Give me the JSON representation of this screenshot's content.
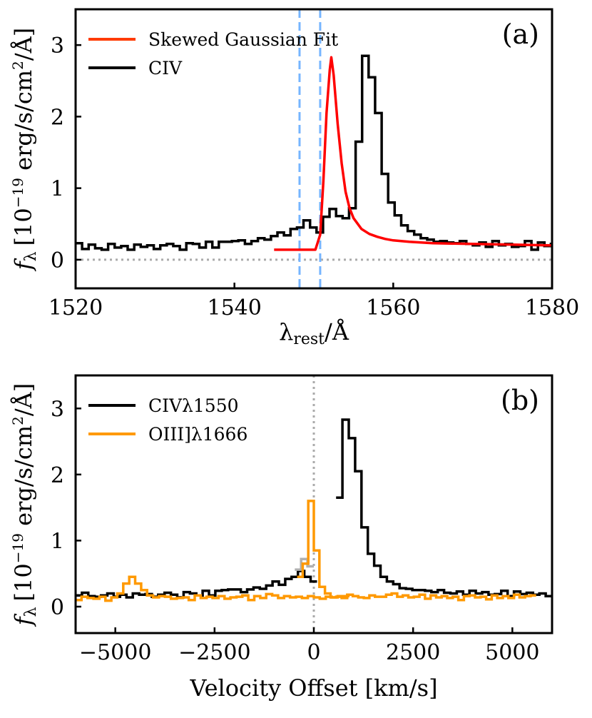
{
  "chart_data": [
    {
      "panel": "a",
      "type": "line",
      "panel_label": "(a)",
      "xlabel": {
        "main": "λ",
        "sub": "rest",
        "unit": "/Å"
      },
      "ylabel": {
        "f": "f",
        "fsub": "λ",
        "bracket_open": "[10",
        "exp": "−19",
        "unit": " erg/s/cm",
        "sq": "2",
        "tail": "/Å]"
      },
      "xlim": [
        1520,
        1580
      ],
      "ylim": [
        -0.4,
        3.5
      ],
      "xticks": [
        1520,
        1540,
        1560,
        1580
      ],
      "yticks": [
        0,
        1,
        2,
        3
      ],
      "legend": [
        {
          "label": "Skewed Gaussian Fit",
          "color": "#ff3b00"
        },
        {
          "label": "CIV",
          "color": "#000000"
        }
      ],
      "vlines": {
        "values": [
          1548.2,
          1550.8
        ],
        "color": "#76b5ff",
        "style": "dashed"
      },
      "hline": {
        "value": 0,
        "color": "#aaaaaa",
        "style": "dotted"
      },
      "series": [
        {
          "name": "CIV",
          "style": "step",
          "color": "#000000",
          "bin_width": 0.82,
          "x_start": 1520.0,
          "values": [
            0.23,
            0.15,
            0.21,
            0.16,
            0.14,
            0.22,
            0.17,
            0.19,
            0.14,
            0.21,
            0.18,
            0.2,
            0.15,
            0.2,
            0.22,
            0.19,
            0.14,
            0.23,
            0.22,
            0.17,
            0.25,
            0.17,
            0.25,
            0.25,
            0.26,
            0.27,
            0.22,
            0.26,
            0.3,
            0.28,
            0.33,
            0.38,
            0.34,
            0.43,
            0.45,
            0.55,
            0.45,
            0.38,
            0.6,
            0.71,
            0.61,
            0.58,
            0.72,
            1.65,
            2.85,
            2.55,
            2.05,
            1.2,
            0.8,
            0.62,
            0.48,
            0.4,
            0.35,
            0.3,
            0.28,
            0.25,
            0.26,
            0.24,
            0.23,
            0.26,
            0.22,
            0.2,
            0.24,
            0.18,
            0.26,
            0.2,
            0.22,
            0.18,
            0.19,
            0.26,
            0.14,
            0.24,
            0.19,
            0.22
          ]
        },
        {
          "name": "Skewed Gaussian Fit",
          "style": "line",
          "color": "#ff0000",
          "x": [
            1545.0,
            1550.2,
            1550.8,
            1551.2,
            1551.6,
            1552.0,
            1552.2,
            1552.5,
            1553.0,
            1553.5,
            1554.0,
            1554.5,
            1555.0,
            1556.0,
            1557.0,
            1558.0,
            1559.0,
            1560.0,
            1562.0,
            1565.0,
            1570.0,
            1575.0,
            1580.0
          ],
          "y": [
            0.14,
            0.14,
            0.35,
            1.1,
            2.05,
            2.65,
            2.83,
            2.58,
            1.9,
            1.35,
            0.95,
            0.72,
            0.58,
            0.43,
            0.36,
            0.32,
            0.29,
            0.27,
            0.25,
            0.23,
            0.22,
            0.21,
            0.2
          ]
        }
      ]
    },
    {
      "panel": "b",
      "type": "line",
      "panel_label": "(b)",
      "xlabel": {
        "main": "Velocity Offset [km/s]"
      },
      "ylabel": {
        "f": "f",
        "fsub": "λ",
        "bracket_open": "[10",
        "exp": "−19",
        "unit": " erg/s/cm",
        "sq": "2",
        "tail": "/Å]"
      },
      "xlim": [
        -6000,
        6000
      ],
      "ylim": [
        -0.4,
        3.5
      ],
      "xticks": [
        -5000,
        -2500,
        0,
        2500,
        5000
      ],
      "xtick_labels": [
        "−5000",
        "−2500",
        "0",
        "2500",
        "5000"
      ],
      "yticks": [
        0,
        1,
        2,
        3
      ],
      "legend": [
        {
          "label": "CIVλ1550",
          "color": "#000000"
        },
        {
          "label": "OIII]λ1666",
          "color": "#ff9900"
        }
      ],
      "vline": {
        "value": 0,
        "color": "#aaaaaa",
        "style": "dotted"
      },
      "series": [
        {
          "name": "CIVλ1550",
          "style": "step",
          "color": "#000000",
          "bin_width": 160,
          "x_start": -6000,
          "values": [
            0.17,
            0.21,
            0.16,
            0.15,
            0.17,
            0.2,
            0.15,
            0.18,
            0.14,
            0.2,
            0.18,
            0.19,
            0.15,
            0.18,
            0.21,
            0.18,
            0.14,
            0.22,
            0.2,
            0.17,
            0.24,
            0.17,
            0.24,
            0.25,
            0.26,
            0.26,
            0.22,
            0.26,
            0.29,
            0.27,
            0.32,
            0.38,
            0.33,
            0.42,
            0.45,
            0.54,
            0.45,
            0.38,
            null,
            null,
            null,
            1.65,
            2.83,
            2.55,
            2.05,
            1.2,
            0.8,
            0.62,
            0.45,
            0.38,
            0.34,
            0.28,
            0.27,
            0.25,
            0.25,
            0.24,
            0.22,
            0.25,
            0.21,
            0.2,
            0.23,
            0.18,
            0.24,
            0.2,
            0.22,
            0.18,
            0.19,
            0.24,
            0.16,
            0.23,
            0.19,
            0.21,
            0.18,
            0.2,
            0.16
          ]
        },
        {
          "name": "CIV (gap)",
          "style": "step",
          "color": "#b0b0b0",
          "bin_width": 160,
          "x_start": -480,
          "values": [
            0.56,
            0.72,
            0.61
          ]
        },
        {
          "name": "OIII]λ1666",
          "style": "step",
          "color": "#ff9900",
          "bin_width": 150,
          "x_start": -6000,
          "values": [
            0.1,
            0.15,
            0.13,
            0.12,
            0.15,
            0.09,
            0.14,
            0.2,
            0.35,
            0.45,
            0.35,
            0.25,
            0.17,
            0.14,
            0.16,
            0.15,
            0.12,
            0.13,
            0.14,
            0.1,
            0.17,
            0.13,
            0.15,
            0.13,
            0.16,
            0.12,
            0.14,
            0.15,
            0.17,
            0.1,
            0.16,
            0.13,
            0.19,
            0.17,
            0.13,
            0.16,
            0.14,
            0.15,
            0.13,
            0.16,
            0.14,
            0.12,
            0.15,
            0.14,
            0.16,
            0.16
          ]
        },
        {
          "name": "OIII]λ1666 (core)",
          "style": "step",
          "color": "#ff9900",
          "bin_width": 140,
          "x_start": -420,
          "values": [
            0.45,
            0.65,
            1.6,
            0.85,
            0.3,
            0.2,
            0.14,
            0.15,
            0.13,
            0.18,
            0.16,
            0.14,
            0.13,
            0.17,
            0.15,
            0.15,
            0.18,
            0.2,
            0.15,
            0.17,
            0.14,
            0.15,
            0.18,
            0.12,
            0.17,
            0.14,
            0.16,
            0.13,
            0.15,
            0.1,
            0.16,
            0.17,
            0.14,
            0.15,
            0.11,
            0.17,
            0.13,
            0.16,
            0.13,
            0.18,
            0.14,
            0.16,
            0.17
          ]
        }
      ]
    }
  ]
}
